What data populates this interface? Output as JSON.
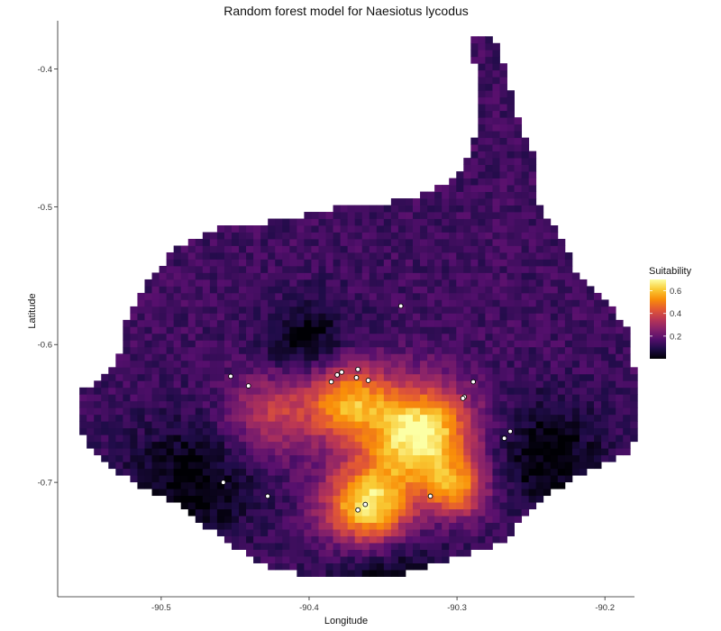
{
  "chart_data": {
    "type": "heatmap",
    "title": "Random forest model for Naesiotus lycodus",
    "xlabel": "Longitude",
    "ylabel": "Latitude",
    "xlim": [
      -90.57,
      -90.18
    ],
    "ylim": [
      -0.783,
      -0.365
    ],
    "x_ticks": [
      {
        "value": -90.5,
        "label": "-90.5"
      },
      {
        "value": -90.4,
        "label": "-90.4"
      },
      {
        "value": -90.3,
        "label": "-90.3"
      },
      {
        "value": -90.2,
        "label": "-90.2"
      }
    ],
    "y_ticks": [
      {
        "value": -0.4,
        "label": "-0.4"
      },
      {
        "value": -0.5,
        "label": "-0.5"
      },
      {
        "value": -0.6,
        "label": "-0.6"
      },
      {
        "value": -0.7,
        "label": "-0.7"
      }
    ],
    "legend": {
      "title": "Suitability",
      "range": [
        0.0,
        0.7
      ],
      "ticks": [
        {
          "value": 0.2,
          "label": "0.2"
        },
        {
          "value": 0.4,
          "label": "0.4"
        },
        {
          "value": 0.6,
          "label": "0.6"
        }
      ],
      "palette": [
        "#000004",
        "#1f0c48",
        "#550f6d",
        "#88226a",
        "#ba3655",
        "#e35933",
        "#f98e09",
        "#f9cb35",
        "#fcffa4"
      ],
      "placement": "right"
    },
    "grid": false,
    "island_outline": [
      [
        -90.555,
        -0.635
      ],
      [
        -90.53,
        -0.615
      ],
      [
        -90.525,
        -0.585
      ],
      [
        -90.51,
        -0.555
      ],
      [
        -90.49,
        -0.53
      ],
      [
        -90.46,
        -0.515
      ],
      [
        -90.42,
        -0.51
      ],
      [
        -90.38,
        -0.5
      ],
      [
        -90.33,
        -0.495
      ],
      [
        -90.3,
        -0.48
      ],
      [
        -90.29,
        -0.46
      ],
      [
        -90.285,
        -0.43
      ],
      [
        -90.29,
        -0.375
      ],
      [
        -90.275,
        -0.375
      ],
      [
        -90.265,
        -0.41
      ],
      [
        -90.255,
        -0.45
      ],
      [
        -90.245,
        -0.47
      ],
      [
        -90.245,
        -0.5
      ],
      [
        -90.23,
        -0.52
      ],
      [
        -90.22,
        -0.545
      ],
      [
        -90.2,
        -0.565
      ],
      [
        -90.185,
        -0.59
      ],
      [
        -90.18,
        -0.62
      ],
      [
        -90.175,
        -0.66
      ],
      [
        -90.185,
        -0.68
      ],
      [
        -90.22,
        -0.695
      ],
      [
        -90.25,
        -0.72
      ],
      [
        -90.27,
        -0.745
      ],
      [
        -90.3,
        -0.755
      ],
      [
        -90.33,
        -0.765
      ],
      [
        -90.36,
        -0.77
      ],
      [
        -90.395,
        -0.77
      ],
      [
        -90.43,
        -0.76
      ],
      [
        -90.46,
        -0.74
      ],
      [
        -90.49,
        -0.715
      ],
      [
        -90.52,
        -0.7
      ],
      [
        -90.545,
        -0.68
      ],
      [
        -90.555,
        -0.66
      ]
    ],
    "suitability_hotspots": [
      {
        "lon": -90.325,
        "lat": -0.665,
        "spread": 0.035,
        "peak": 0.58
      },
      {
        "lon": -90.375,
        "lat": -0.64,
        "spread": 0.028,
        "peak": 0.4
      },
      {
        "lon": -90.36,
        "lat": -0.718,
        "spread": 0.03,
        "peak": 0.55
      },
      {
        "lon": -90.3,
        "lat": -0.705,
        "spread": 0.02,
        "peak": 0.35
      },
      {
        "lon": -90.425,
        "lat": -0.65,
        "spread": 0.03,
        "peak": 0.22
      }
    ],
    "low_zones": [
      {
        "lon": -90.48,
        "lat": -0.7,
        "spread": 0.045
      },
      {
        "lon": -90.24,
        "lat": -0.68,
        "spread": 0.04
      },
      {
        "lon": -90.35,
        "lat": -0.76,
        "spread": 0.04
      },
      {
        "lon": -90.4,
        "lat": -0.6,
        "spread": 0.03
      }
    ],
    "base_suitability": 0.14,
    "occurrences": [
      {
        "lon": -90.338,
        "lat": -0.572
      },
      {
        "lon": -90.453,
        "lat": -0.623
      },
      {
        "lon": -90.441,
        "lat": -0.63
      },
      {
        "lon": -90.378,
        "lat": -0.62
      },
      {
        "lon": -90.381,
        "lat": -0.622
      },
      {
        "lon": -90.385,
        "lat": -0.627
      },
      {
        "lon": -90.367,
        "lat": -0.618
      },
      {
        "lon": -90.368,
        "lat": -0.624
      },
      {
        "lon": -90.36,
        "lat": -0.626
      },
      {
        "lon": -90.289,
        "lat": -0.627
      },
      {
        "lon": -90.295,
        "lat": -0.638
      },
      {
        "lon": -90.296,
        "lat": -0.639
      },
      {
        "lon": -90.264,
        "lat": -0.663
      },
      {
        "lon": -90.268,
        "lat": -0.668
      },
      {
        "lon": -90.458,
        "lat": -0.7
      },
      {
        "lon": -90.428,
        "lat": -0.71
      },
      {
        "lon": -90.318,
        "lat": -0.71
      },
      {
        "lon": -90.362,
        "lat": -0.716
      },
      {
        "lon": -90.367,
        "lat": -0.72
      }
    ]
  }
}
